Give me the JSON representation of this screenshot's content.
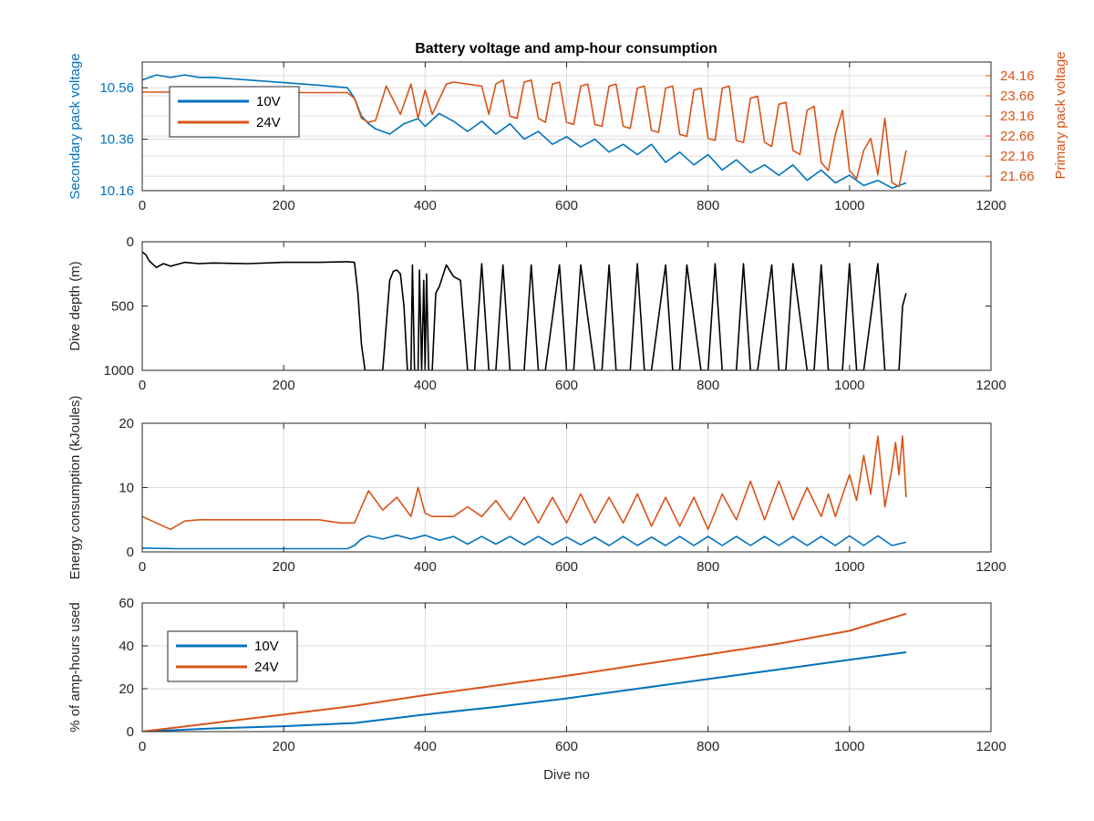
{
  "figure": {
    "title": "Battery voltage and amp-hour consumption"
  },
  "colors": {
    "series_10v": "#0072BD",
    "series_24v": "#D95319",
    "depth": "#000000",
    "grid": "#dcdcdc",
    "axes": "#262626"
  },
  "chart_data": [
    {
      "id": "voltage",
      "type": "line",
      "title": "Battery voltage and amp-hour consumption",
      "xlabel": "",
      "ylabel": "Secondary pack voltage",
      "y2label": "Primary pack voltage",
      "xlim": [
        0,
        1200
      ],
      "xticks": [
        "0",
        "200",
        "400",
        "600",
        "800",
        "1000",
        "1200"
      ],
      "ylim": [
        10.16,
        10.66
      ],
      "yticks": [
        "10.16",
        "10.36",
        "10.56"
      ],
      "y2lim": [
        21.3,
        24.5
      ],
      "y2ticks": [
        "21.66",
        "22.16",
        "22.66",
        "23.16",
        "23.66",
        "24.16"
      ],
      "grid": true,
      "legend": {
        "position": "top-left",
        "entries": [
          "10V",
          "24V"
        ]
      },
      "series": [
        {
          "name": "10V",
          "axis": "left",
          "x": [
            0,
            20,
            40,
            60,
            80,
            100,
            150,
            200,
            250,
            290,
            300,
            310,
            320,
            330,
            350,
            370,
            390,
            400,
            420,
            440,
            460,
            480,
            500,
            520,
            540,
            560,
            580,
            600,
            620,
            640,
            660,
            680,
            700,
            720,
            740,
            760,
            780,
            800,
            820,
            840,
            860,
            880,
            900,
            920,
            940,
            960,
            980,
            1000,
            1020,
            1040,
            1060,
            1080
          ],
          "y": [
            10.59,
            10.61,
            10.6,
            10.61,
            10.6,
            10.6,
            10.59,
            10.58,
            10.57,
            10.56,
            10.52,
            10.45,
            10.42,
            10.4,
            10.38,
            10.42,
            10.44,
            10.41,
            10.46,
            10.43,
            10.39,
            10.43,
            10.38,
            10.42,
            10.36,
            10.39,
            10.34,
            10.37,
            10.33,
            10.36,
            10.31,
            10.34,
            10.3,
            10.34,
            10.27,
            10.31,
            10.26,
            10.3,
            10.24,
            10.28,
            10.23,
            10.26,
            10.22,
            10.26,
            10.2,
            10.24,
            10.19,
            10.22,
            10.18,
            10.2,
            10.17,
            10.19
          ]
        },
        {
          "name": "24V",
          "axis": "right",
          "x": [
            0,
            50,
            100,
            150,
            200,
            250,
            290,
            300,
            310,
            320,
            330,
            345,
            365,
            380,
            390,
            400,
            410,
            430,
            440,
            460,
            480,
            490,
            500,
            510,
            520,
            530,
            540,
            550,
            560,
            570,
            580,
            590,
            600,
            610,
            620,
            630,
            640,
            650,
            660,
            670,
            680,
            690,
            700,
            710,
            720,
            730,
            740,
            750,
            760,
            770,
            780,
            790,
            800,
            810,
            820,
            830,
            840,
            850,
            860,
            870,
            880,
            890,
            900,
            910,
            920,
            930,
            940,
            950,
            960,
            970,
            980,
            990,
            1000,
            1010,
            1020,
            1030,
            1040,
            1050,
            1060,
            1070,
            1080
          ],
          "y": [
            23.75,
            23.75,
            23.75,
            23.75,
            23.74,
            23.74,
            23.74,
            23.6,
            23.1,
            23.0,
            23.05,
            23.9,
            23.2,
            23.95,
            23.1,
            23.8,
            23.2,
            23.95,
            24.0,
            23.95,
            23.9,
            23.2,
            23.95,
            24.05,
            23.15,
            23.1,
            24.0,
            24.05,
            23.1,
            23.0,
            23.95,
            24.0,
            23.0,
            22.95,
            23.9,
            23.95,
            22.95,
            22.9,
            23.9,
            23.95,
            22.9,
            22.85,
            23.85,
            23.9,
            22.8,
            22.75,
            23.85,
            23.9,
            22.7,
            22.65,
            23.8,
            23.85,
            22.6,
            22.55,
            23.85,
            23.9,
            22.55,
            22.5,
            23.6,
            23.65,
            22.5,
            22.4,
            23.45,
            23.5,
            22.3,
            22.2,
            23.3,
            23.4,
            22.0,
            21.8,
            22.7,
            23.3,
            21.8,
            21.6,
            22.3,
            22.6,
            21.7,
            23.1,
            21.5,
            21.4,
            22.3
          ]
        }
      ]
    },
    {
      "id": "depth",
      "type": "line",
      "title": "",
      "xlabel": "",
      "ylabel": "Dive depth (m)",
      "xlim": [
        0,
        1200
      ],
      "xticks": [
        "0",
        "200",
        "400",
        "600",
        "800",
        "1000",
        "1200"
      ],
      "ylim": [
        0,
        1000
      ],
      "ylim_reversed": true,
      "yticks": [
        "0",
        "500",
        "1000"
      ],
      "grid": false,
      "series": [
        {
          "name": "",
          "x": [
            0,
            5,
            10,
            20,
            30,
            40,
            60,
            80,
            100,
            150,
            200,
            250,
            290,
            300,
            305,
            310,
            315,
            320,
            330,
            340,
            350,
            355,
            360,
            365,
            370,
            375,
            380,
            382,
            385,
            390,
            392,
            395,
            398,
            400,
            402,
            405,
            410,
            415,
            420,
            430,
            440,
            450,
            460,
            470,
            480,
            490,
            500,
            510,
            520,
            540,
            550,
            560,
            570,
            590,
            600,
            610,
            620,
            640,
            650,
            660,
            670,
            690,
            700,
            710,
            720,
            740,
            750,
            760,
            770,
            790,
            800,
            810,
            820,
            840,
            850,
            860,
            870,
            890,
            900,
            910,
            920,
            940,
            950,
            960,
            970,
            990,
            1000,
            1010,
            1020,
            1040,
            1050,
            1060,
            1070,
            1075,
            1080
          ],
          "y": [
            80,
            100,
            150,
            200,
            170,
            190,
            160,
            170,
            165,
            170,
            160,
            160,
            155,
            160,
            400,
            800,
            1000,
            1000,
            1000,
            1000,
            300,
            230,
            220,
            250,
            500,
            1000,
            1000,
            180,
            1000,
            1000,
            220,
            1000,
            300,
            1000,
            250,
            1000,
            1000,
            400,
            350,
            180,
            270,
            300,
            1000,
            1000,
            170,
            1000,
            1000,
            180,
            1000,
            1000,
            180,
            1000,
            1000,
            180,
            1000,
            1000,
            180,
            1000,
            1000,
            180,
            1000,
            1000,
            170,
            1000,
            1000,
            180,
            1000,
            1000,
            180,
            1000,
            1000,
            170,
            1000,
            1000,
            170,
            1000,
            1000,
            180,
            1000,
            1000,
            170,
            1000,
            1000,
            180,
            1000,
            1000,
            170,
            1000,
            1000,
            170,
            1000,
            1000,
            1000,
            500,
            400
          ]
        }
      ]
    },
    {
      "id": "energy",
      "type": "line",
      "title": "",
      "xlabel": "",
      "ylabel": "Energy consumption (kJoules)",
      "xlim": [
        0,
        1200
      ],
      "xticks": [
        "0",
        "200",
        "400",
        "600",
        "800",
        "1000",
        "1200"
      ],
      "ylim": [
        0,
        20
      ],
      "yticks": [
        "0",
        "10",
        "20"
      ],
      "grid": true,
      "series": [
        {
          "name": "10V",
          "x": [
            0,
            50,
            100,
            150,
            200,
            250,
            290,
            300,
            310,
            320,
            340,
            360,
            380,
            400,
            420,
            440,
            460,
            480,
            500,
            520,
            540,
            560,
            580,
            600,
            620,
            640,
            660,
            680,
            700,
            720,
            740,
            760,
            780,
            800,
            820,
            840,
            860,
            880,
            900,
            920,
            940,
            960,
            980,
            1000,
            1020,
            1040,
            1060,
            1080
          ],
          "y": [
            0.6,
            0.5,
            0.5,
            0.5,
            0.5,
            0.5,
            0.5,
            1.0,
            2.0,
            2.5,
            2.0,
            2.6,
            2.0,
            2.6,
            1.8,
            2.4,
            1.2,
            2.4,
            1.2,
            2.4,
            1.1,
            2.4,
            1.1,
            2.3,
            1.1,
            2.3,
            1.0,
            2.4,
            1.0,
            2.3,
            1.0,
            2.4,
            1.0,
            2.4,
            1.0,
            2.4,
            1.0,
            2.4,
            1.0,
            2.4,
            1.0,
            2.4,
            1.0,
            2.5,
            1.0,
            2.5,
            1.0,
            1.5
          ]
        },
        {
          "name": "24V",
          "x": [
            0,
            20,
            40,
            60,
            80,
            100,
            150,
            200,
            250,
            280,
            300,
            310,
            320,
            340,
            360,
            380,
            390,
            400,
            410,
            420,
            440,
            460,
            480,
            500,
            520,
            540,
            560,
            580,
            600,
            620,
            640,
            660,
            680,
            700,
            720,
            740,
            760,
            780,
            800,
            820,
            840,
            860,
            880,
            900,
            920,
            940,
            960,
            970,
            980,
            1000,
            1010,
            1020,
            1030,
            1040,
            1050,
            1060,
            1065,
            1070,
            1075,
            1080
          ],
          "y": [
            5.5,
            4.5,
            3.5,
            4.8,
            5.0,
            5.0,
            5.0,
            5.0,
            5.0,
            4.5,
            4.5,
            7.0,
            9.5,
            6.5,
            8.5,
            5.5,
            10.0,
            6.0,
            5.5,
            5.5,
            5.5,
            7.0,
            5.5,
            8.0,
            5.0,
            8.5,
            4.5,
            8.5,
            4.5,
            9.0,
            4.5,
            8.5,
            4.5,
            9.0,
            4.0,
            8.5,
            4.0,
            8.5,
            3.5,
            9.0,
            5.0,
            11.0,
            5.0,
            11.0,
            5.0,
            10.0,
            5.5,
            9.0,
            5.5,
            12.0,
            8.0,
            15.0,
            9.0,
            18.0,
            7.0,
            13.0,
            17.0,
            12.0,
            18.0,
            8.5
          ]
        }
      ]
    },
    {
      "id": "amphours",
      "type": "line",
      "title": "",
      "xlabel": "Dive no",
      "ylabel": "% of amp-hours used",
      "xlim": [
        0,
        1200
      ],
      "xticks": [
        "0",
        "200",
        "400",
        "600",
        "800",
        "1000",
        "1200"
      ],
      "ylim": [
        0,
        60
      ],
      "yticks": [
        "0",
        "20",
        "40",
        "60"
      ],
      "grid": true,
      "legend": {
        "position": "bottom-left",
        "entries": [
          "10V",
          "24V"
        ]
      },
      "series": [
        {
          "name": "10V",
          "x": [
            0,
            100,
            200,
            300,
            400,
            500,
            600,
            700,
            800,
            900,
            1000,
            1080
          ],
          "y": [
            0,
            1.5,
            2.5,
            4.0,
            8.0,
            11.5,
            15.5,
            20.0,
            24.5,
            29.0,
            33.5,
            37.0
          ]
        },
        {
          "name": "24V",
          "x": [
            0,
            100,
            200,
            300,
            400,
            500,
            600,
            700,
            800,
            900,
            1000,
            1080
          ],
          "y": [
            0,
            4.0,
            8.0,
            12.0,
            17.0,
            21.5,
            26.0,
            31.0,
            36.0,
            41.0,
            47.0,
            55.0
          ]
        }
      ]
    }
  ]
}
